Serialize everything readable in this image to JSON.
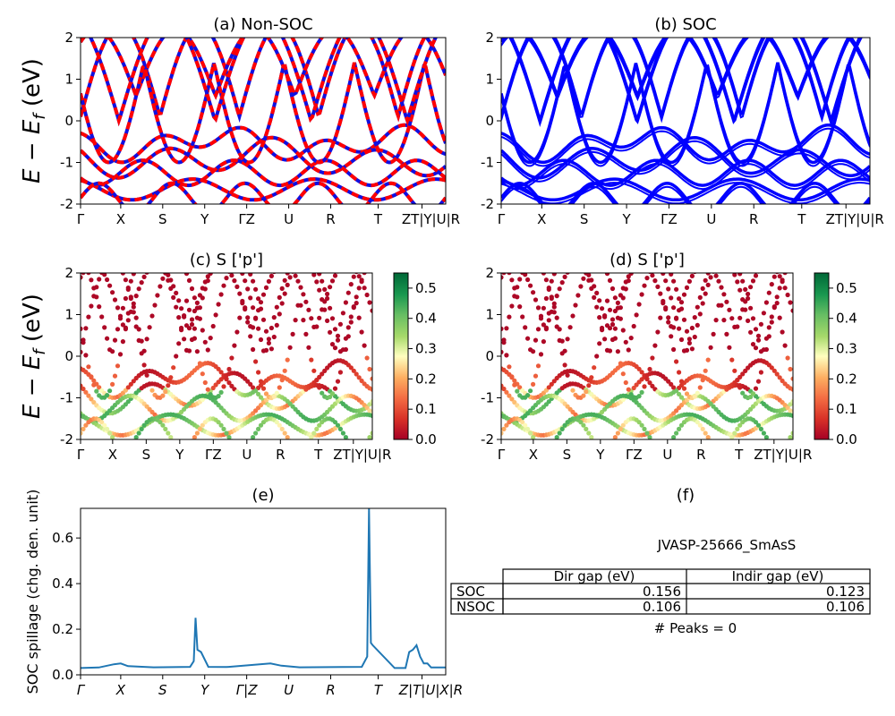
{
  "colors": {
    "nonsoc_red": "#ff0000",
    "nonsoc_blue": "#1010e0",
    "soc_blue": "#0000ff",
    "spillage_line": "#1f77b4"
  },
  "kpath_labels": [
    "Γ",
    "X",
    "S",
    "Y",
    "ΓZ",
    "U",
    "R",
    "T",
    "ZT|Y|U|R"
  ],
  "kpath_labels_italic": [
    "Γ",
    "X",
    "S",
    "Y",
    "Γ|Z",
    "U",
    "R",
    "T",
    "Z|T|U|X|R"
  ],
  "chart_data": [
    {
      "id": "a",
      "type": "line",
      "title": "(a) Non-SOC",
      "ylabel": "E − E_f (eV)",
      "ylim": [
        -2,
        2
      ],
      "yticks": [
        -2,
        -1,
        0,
        1,
        2
      ],
      "xticks": [
        "Γ",
        "X",
        "S",
        "Y",
        "ΓZ",
        "U",
        "R",
        "T",
        "ZT|Y|U|R"
      ],
      "series": [
        {
          "values": [
            0.1,
            0.6,
            1.2,
            0.7,
            0.65,
            1.8,
            2.0
          ]
        },
        {
          "values": [
            -0.6,
            -0.5,
            -0.75,
            -1.2,
            -1.0,
            -0.5,
            -0.3
          ]
        },
        {
          "values": [
            -0.9,
            -0.8,
            -1.0,
            -1.3,
            -1.6,
            -1.7,
            -1.4
          ]
        },
        {
          "values": [
            -1.2,
            -1.4,
            -1.2,
            -1.5,
            -1.75,
            -1.8,
            -1.65
          ]
        }
      ]
    },
    {
      "id": "b",
      "type": "line",
      "title": "(b) SOC",
      "ylim": [
        -2,
        2
      ],
      "yticks": [
        -2,
        -1,
        0,
        1,
        2
      ],
      "xticks": [
        "Γ",
        "X",
        "S",
        "Y",
        "ΓZ",
        "U",
        "R",
        "T",
        "ZT|Y|U|R"
      ]
    },
    {
      "id": "c",
      "type": "scatter",
      "title": "(c)  S ['p']",
      "ylabel": "E − E_f (eV)",
      "ylim": [
        -2,
        2
      ],
      "yticks": [
        -2,
        -1,
        0,
        1,
        2
      ],
      "xticks": [
        "Γ",
        "X",
        "S",
        "Y",
        "ΓZ",
        "U",
        "R",
        "T",
        "ZT|Y|U|R"
      ],
      "colorbar_ticks": [
        0.0,
        0.1,
        0.2,
        0.3,
        0.4,
        0.5
      ]
    },
    {
      "id": "d",
      "type": "scatter",
      "title": "(d) S ['p']",
      "ylim": [
        -2,
        2
      ],
      "yticks": [
        -2,
        -1,
        0,
        1,
        2
      ],
      "xticks": [
        "Γ",
        "X",
        "S",
        "Y",
        "ΓZ",
        "U",
        "R",
        "T",
        "ZT|Y|U|R"
      ],
      "colorbar_ticks": [
        0.0,
        0.1,
        0.2,
        0.3,
        0.4,
        0.5
      ]
    },
    {
      "id": "e",
      "type": "line",
      "title": "(e)",
      "ylabel": "SOC spillage (chg. den. unit)",
      "ylim": [
        0,
        0.73
      ],
      "yticks": [
        0.0,
        0.2,
        0.4,
        0.6
      ],
      "xticks": [
        "Γ",
        "X",
        "S",
        "Y",
        "Γ|Z",
        "U",
        "R",
        "T",
        "Z|T|U|X|R"
      ],
      "x": [
        0,
        0.05,
        0.09,
        0.11,
        0.13,
        0.2,
        0.3,
        0.31,
        0.315,
        0.32,
        0.33,
        0.35,
        0.4,
        0.52,
        0.55,
        0.6,
        0.77,
        0.785,
        0.79,
        0.795,
        0.8,
        0.86,
        0.89,
        0.9,
        0.91,
        0.92,
        0.93,
        0.94,
        0.95,
        0.96,
        1.0
      ],
      "values": [
        0.03,
        0.032,
        0.046,
        0.05,
        0.038,
        0.033,
        0.035,
        0.06,
        0.25,
        0.11,
        0.1,
        0.035,
        0.034,
        0.05,
        0.04,
        0.033,
        0.035,
        0.08,
        0.73,
        0.14,
        0.13,
        0.03,
        0.03,
        0.1,
        0.11,
        0.13,
        0.08,
        0.05,
        0.05,
        0.032,
        0.032
      ]
    }
  ],
  "info": {
    "title": "(f)",
    "material": "JVASP-25666_SmAsS",
    "table": {
      "headers": [
        "Dir gap (eV)",
        "Indir gap (eV)"
      ],
      "rows": [
        {
          "label": "SOC",
          "dir": "0.156",
          "indir": "0.123"
        },
        {
          "label": "NSOC",
          "dir": "0.106",
          "indir": "0.106"
        }
      ]
    },
    "peaks": "# Peaks = 0"
  }
}
